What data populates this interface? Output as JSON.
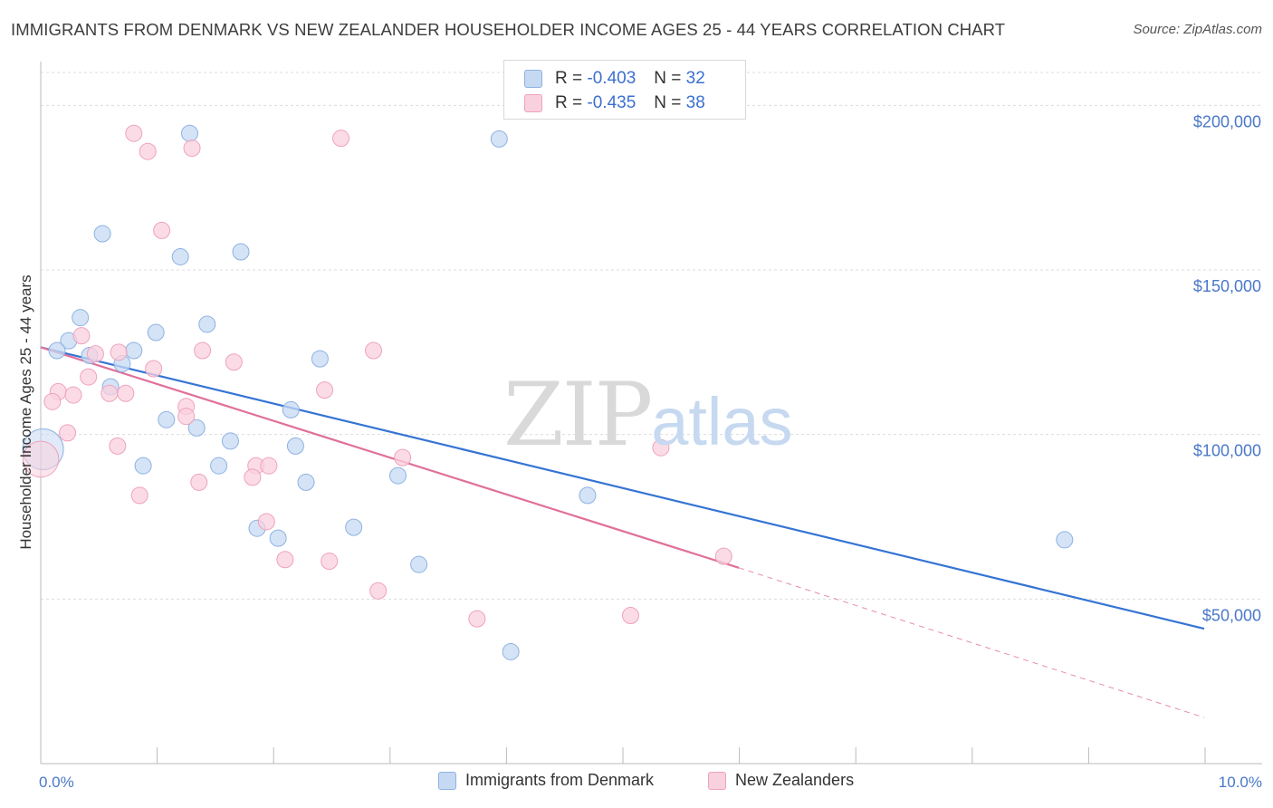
{
  "header": {
    "title": "IMMIGRANTS FROM DENMARK VS NEW ZEALANDER HOUSEHOLDER INCOME AGES 25 - 44 YEARS CORRELATION CHART",
    "source": "Source: ZipAtlas.com"
  },
  "watermark": {
    "zip": "ZIP",
    "atlas": "atlas"
  },
  "legend": {
    "rows": [
      {
        "r_label": "R = ",
        "r_value": "-0.403",
        "n_label": "N = ",
        "n_value": "32"
      },
      {
        "r_label": "R = ",
        "r_value": "-0.435",
        "n_label": "N = ",
        "n_value": "38"
      }
    ]
  },
  "bottom_legend": {
    "items": [
      {
        "label": "Immigrants from Denmark"
      },
      {
        "label": "New Zealanders"
      }
    ]
  },
  "chart_data": {
    "type": "scatter",
    "title": "IMMIGRANTS FROM DENMARK VS NEW ZEALANDER HOUSEHOLDER INCOME AGES 25 - 44 YEARS CORRELATION CHART",
    "xlabel": "",
    "ylabel": "Householder Income Ages 25 - 44 years",
    "xlim": [
      0,
      10
    ],
    "ylim": [
      0,
      210000
    ],
    "x_tick_labels": [
      "0.0%",
      "10.0%"
    ],
    "y_ticks": [
      50000,
      100000,
      150000,
      200000
    ],
    "y_tick_labels": [
      "$50,000",
      "$100,000",
      "$150,000",
      "$200,000"
    ],
    "grid": "horizontal dashed",
    "legend_placement": "top-center and bottom",
    "colors": {
      "denmark_fill": "#c6d9f3",
      "denmark_stroke": "#8eb2e2",
      "denmark_line": "#3574d4",
      "nz_fill": "#f9d0dd",
      "nz_stroke": "#efa2bb",
      "nz_line": "#e0709a"
    },
    "series": [
      {
        "name": "Immigrants from Denmark",
        "points": [
          [
            1.28,
            191500
          ],
          [
            3.94,
            189800
          ],
          [
            0.53,
            161000
          ],
          [
            1.72,
            155500
          ],
          [
            1.2,
            154000
          ],
          [
            0.34,
            135500
          ],
          [
            1.43,
            133500
          ],
          [
            0.99,
            131000
          ],
          [
            0.24,
            128500
          ],
          [
            0.14,
            125500
          ],
          [
            0.8,
            125500
          ],
          [
            0.42,
            124000
          ],
          [
            0.7,
            121500
          ],
          [
            2.4,
            123000
          ],
          [
            0.6,
            114500
          ],
          [
            2.15,
            107500
          ],
          [
            1.08,
            104500
          ],
          [
            1.34,
            102000
          ],
          [
            1.63,
            98000
          ],
          [
            2.19,
            96500
          ],
          [
            0.02,
            95500
          ],
          [
            0.88,
            90500
          ],
          [
            1.53,
            90500
          ],
          [
            2.28,
            85500
          ],
          [
            3.07,
            87500
          ],
          [
            4.7,
            81500
          ],
          [
            1.86,
            71500
          ],
          [
            2.04,
            68500
          ],
          [
            2.69,
            71800
          ],
          [
            3.25,
            60500
          ],
          [
            4.04,
            34000
          ],
          [
            8.8,
            68000
          ]
        ],
        "sizes": [
          1,
          1,
          1,
          1,
          1,
          1,
          1,
          1,
          1,
          1,
          1,
          1,
          1,
          1,
          1,
          1,
          1,
          1,
          1,
          1,
          2.5,
          1,
          1,
          1,
          1,
          1,
          1,
          1,
          1,
          1,
          1,
          1
        ],
        "trend": {
          "x": [
            0,
            10
          ],
          "y": [
            126500,
            41000
          ],
          "style": "solid"
        }
      },
      {
        "name": "New Zealanders",
        "points": [
          [
            0.8,
            191500
          ],
          [
            2.58,
            190000
          ],
          [
            0.92,
            186000
          ],
          [
            1.3,
            187000
          ],
          [
            1.04,
            162000
          ],
          [
            0.35,
            130000
          ],
          [
            0.67,
            125000
          ],
          [
            0.47,
            124500
          ],
          [
            1.39,
            125500
          ],
          [
            2.86,
            125500
          ],
          [
            1.66,
            122000
          ],
          [
            0.97,
            120000
          ],
          [
            0.41,
            117500
          ],
          [
            0.15,
            113000
          ],
          [
            0.28,
            112000
          ],
          [
            0.59,
            112500
          ],
          [
            0.73,
            112500
          ],
          [
            2.44,
            113500
          ],
          [
            0.1,
            110000
          ],
          [
            1.25,
            108500
          ],
          [
            1.25,
            105500
          ],
          [
            0.23,
            100500
          ],
          [
            0.66,
            96500
          ],
          [
            5.33,
            96000
          ],
          [
            3.11,
            93000
          ],
          [
            0.0,
            92500
          ],
          [
            1.85,
            90500
          ],
          [
            1.96,
            90500
          ],
          [
            1.82,
            87000
          ],
          [
            1.36,
            85500
          ],
          [
            0.85,
            81500
          ],
          [
            1.94,
            73500
          ],
          [
            2.1,
            62000
          ],
          [
            2.48,
            61500
          ],
          [
            5.87,
            63000
          ],
          [
            2.9,
            52500
          ],
          [
            3.75,
            44000
          ],
          [
            5.07,
            45000
          ]
        ],
        "sizes": [
          1,
          1,
          1,
          1,
          1,
          1,
          1,
          1,
          1,
          1,
          1,
          1,
          1,
          1,
          1,
          1,
          1,
          1,
          1,
          1,
          1,
          1,
          1,
          1,
          1,
          2.2,
          1,
          1,
          1,
          1,
          1,
          1,
          1,
          1,
          1,
          1,
          1,
          1
        ],
        "trend": {
          "x": [
            0,
            6.0
          ],
          "y": [
            126500,
            59500
          ],
          "style": "solid",
          "extension": {
            "x": [
              6.0,
              10
            ],
            "y": [
              59500,
              14000
            ],
            "style": "dashed"
          }
        }
      }
    ]
  }
}
